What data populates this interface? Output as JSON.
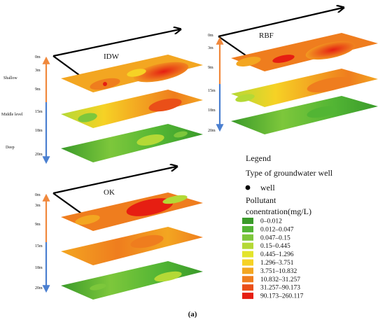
{
  "caption": "(a)",
  "panels": [
    {
      "title": "IDW",
      "depths": [
        "0m",
        "3m",
        "9m",
        "15m",
        "18m",
        "20m"
      ],
      "zones": [
        "Shallow",
        "Middle level",
        "Deep"
      ]
    },
    {
      "title": "RBF",
      "depths": [
        "0m",
        "3m",
        "9m",
        "15m",
        "18m",
        "20m"
      ],
      "zones": []
    },
    {
      "title": "OK",
      "depths": [
        "0m",
        "3m",
        "9m",
        "15m",
        "18m",
        "20m"
      ],
      "zones": []
    }
  ],
  "legend": {
    "title": "Legend",
    "well_heading": "Type of groundwater well",
    "well_label": "well",
    "pollutant_heading_1": "Pollutant",
    "pollutant_heading_2": "conentration(mg/L)",
    "classes": [
      {
        "label": "0–0.012",
        "color": "#3a9a2a"
      },
      {
        "label": "0.012–0.047",
        "color": "#52b534"
      },
      {
        "label": "0.047–0.15",
        "color": "#7dc73b"
      },
      {
        "label": "0.15–0.445",
        "color": "#b4d936"
      },
      {
        "label": "0.445–1.296",
        "color": "#e3e42c"
      },
      {
        "label": "1.296–3.751",
        "color": "#f6d225"
      },
      {
        "label": "3.751–10.832",
        "color": "#f3a621"
      },
      {
        "label": "10.832–31.257",
        "color": "#ef7d1e"
      },
      {
        "label": "31.257–90.173",
        "color": "#ea4f18"
      },
      {
        "label": "90.173–260.117",
        "color": "#e61e12"
      }
    ]
  },
  "colors": {
    "depth_shallow_arrow": "#f0883c",
    "depth_deep_arrow": "#4a7fd0",
    "direction_arrow": "#000000"
  }
}
